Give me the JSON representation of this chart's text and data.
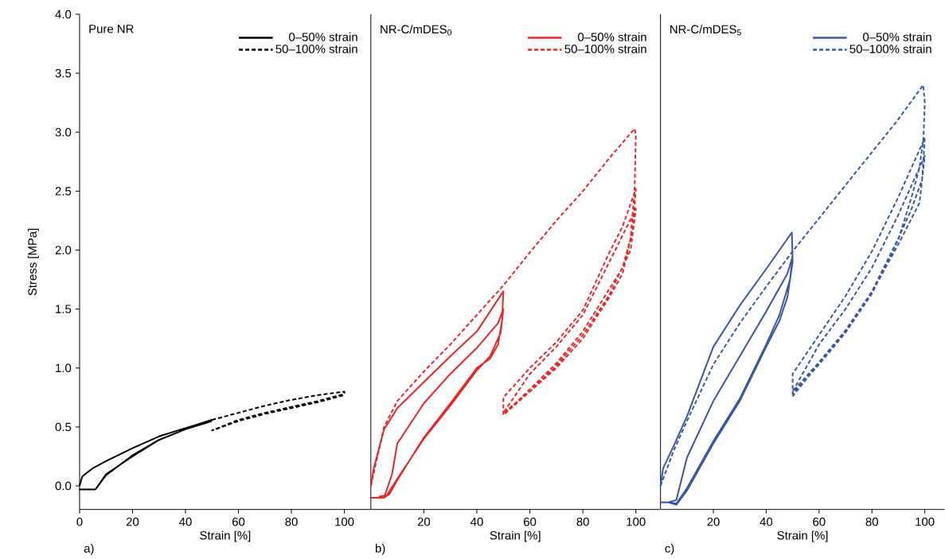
{
  "chart_data": [
    {
      "type": "line",
      "title": "Pure NR",
      "xlabel": "Strain [%]",
      "ylabel": "Stress [MPa]",
      "annotations": [
        "a)"
      ],
      "legend": "top right",
      "marker": "none",
      "xlim": [
        0,
        110
      ],
      "ylim": [
        -0.2,
        4.0
      ],
      "xticks": [
        0,
        20,
        40,
        60,
        80,
        100
      ],
      "yticks": [
        {
          "value": 0,
          "label": "0.0"
        },
        {
          "value": 0.5,
          "label": "0.5"
        },
        {
          "value": 1,
          "label": "1.0"
        },
        {
          "value": 1.5,
          "label": "1.5"
        },
        {
          "value": 2,
          "label": "2.0"
        },
        {
          "value": 2.5,
          "label": "2.5"
        },
        {
          "value": 3,
          "label": "3.0"
        },
        {
          "value": 3.5,
          "label": "3.5"
        },
        {
          "value": 4,
          "label": "4.0"
        }
      ],
      "series": [
        {
          "name": "0–50% strain",
          "color": "#000000",
          "line_style": "solid",
          "x": [
            0,
            1,
            5,
            10,
            20,
            30,
            40,
            50,
            40,
            30,
            20,
            10,
            6,
            0,
            6,
            10,
            20,
            30,
            40,
            50
          ],
          "values": [
            0,
            0.08,
            0.15,
            0.21,
            0.32,
            0.42,
            0.49,
            0.56,
            0.48,
            0.39,
            0.25,
            0.1,
            -0.03,
            -0.03,
            -0.03,
            0.09,
            0.26,
            0.39,
            0.48,
            0.55
          ]
        },
        {
          "name": "50–100% strain",
          "color": "#000000",
          "line_style": "dashed",
          "x": [
            50,
            60,
            70,
            80,
            90,
            100,
            100,
            90,
            80,
            70,
            60,
            50,
            60,
            70,
            80,
            90,
            100
          ],
          "values": [
            0.56,
            0.62,
            0.68,
            0.73,
            0.77,
            0.8,
            0.78,
            0.72,
            0.67,
            0.62,
            0.56,
            0.47,
            0.55,
            0.61,
            0.66,
            0.71,
            0.77
          ]
        }
      ]
    },
    {
      "type": "line",
      "title": "NR-C/mDES$_{0}$",
      "xlabel": "Strain [%]",
      "annotations": [
        "b)"
      ],
      "legend": "top right",
      "marker": "none",
      "tick_labels": "x",
      "xlim": [
        0,
        109
      ],
      "ylim": [
        -0.2,
        4.0
      ],
      "xticks": [
        20,
        40,
        60,
        80,
        100
      ],
      "series": [
        {
          "name": "0–50% strain",
          "color": "#e8272a",
          "line_style": "solid",
          "x": [
            0,
            1,
            5,
            10,
            20,
            30,
            40,
            50,
            49.5,
            48,
            45,
            40,
            30,
            20,
            10,
            7,
            5,
            0,
            5,
            8,
            10,
            20,
            30,
            40,
            48,
            50,
            49,
            45,
            40,
            30,
            20,
            10,
            6,
            3
          ],
          "values": [
            0,
            0.14,
            0.48,
            0.66,
            0.88,
            1.1,
            1.31,
            1.65,
            1.4,
            1.2,
            1.08,
            1.0,
            0.7,
            0.41,
            0.05,
            -0.07,
            -0.1,
            -0.1,
            -0.1,
            0.1,
            0.36,
            0.7,
            0.95,
            1.17,
            1.38,
            1.5,
            1.3,
            1.1,
            0.98,
            0.68,
            0.4,
            0.06,
            -0.08,
            -0.09
          ]
        },
        {
          "name": "50–100% strain",
          "color": "#e8272a",
          "line_style": "dashed",
          "x": [
            0,
            5,
            10,
            20,
            30,
            40,
            50,
            60,
            70,
            80,
            90,
            99.5,
            100,
            99.5,
            98,
            95,
            90,
            80,
            70,
            60,
            50,
            50,
            60,
            70,
            80,
            90,
            95,
            100,
            99,
            95,
            90,
            80,
            70,
            60,
            50,
            60,
            70,
            80,
            90,
            100,
            98,
            90,
            80,
            70,
            60,
            50
          ],
          "values": [
            0,
            0.5,
            0.72,
            0.97,
            1.2,
            1.45,
            1.7,
            1.98,
            2.25,
            2.5,
            2.78,
            3.03,
            2.98,
            2.5,
            2.1,
            1.85,
            1.67,
            1.31,
            1.04,
            0.82,
            0.6,
            0.75,
            1.0,
            1.22,
            1.49,
            1.98,
            2.2,
            2.52,
            2.2,
            1.8,
            1.6,
            1.25,
            1.0,
            0.8,
            0.62,
            0.95,
            1.18,
            1.45,
            1.9,
            2.35,
            2.0,
            1.62,
            1.28,
            1.02,
            0.8,
            0.6
          ]
        }
      ]
    },
    {
      "type": "line",
      "title": "NR-C/mDES$_{5}$",
      "xlabel": "Strain [%]",
      "annotations": [
        "c)"
      ],
      "legend": "top right",
      "marker": "none",
      "tick_labels": "x",
      "xlim": [
        0,
        107.5
      ],
      "ylim": [
        -0.2,
        4.0
      ],
      "xticks": [
        20,
        40,
        60,
        80,
        100
      ],
      "series": [
        {
          "name": "0–50% strain",
          "color": "#3a56a5",
          "line_style": "solid",
          "x": [
            0,
            1,
            5,
            10,
            20,
            30,
            40,
            49.7,
            50,
            48,
            45,
            40,
            30,
            20,
            10,
            6,
            3,
            0,
            3,
            6,
            10,
            20,
            30,
            40,
            48,
            50,
            49,
            45,
            40,
            30,
            20,
            10,
            6,
            3
          ],
          "values": [
            0,
            0.15,
            0.34,
            0.59,
            1.18,
            1.53,
            1.84,
            2.15,
            1.9,
            1.6,
            1.4,
            1.18,
            0.72,
            0.36,
            -0.04,
            -0.16,
            -0.14,
            -0.14,
            -0.14,
            -0.12,
            0.24,
            0.72,
            1.1,
            1.48,
            1.8,
            1.95,
            1.75,
            1.45,
            1.2,
            0.74,
            0.38,
            -0.02,
            -0.15,
            -0.14
          ]
        },
        {
          "name": "50–100% strain",
          "color": "#3a56a5",
          "line_style": "dashed",
          "x": [
            0,
            5,
            10,
            20,
            30,
            40,
            50,
            60,
            70,
            80,
            90,
            99.4,
            100,
            99.5,
            98,
            95,
            90,
            80,
            70,
            60,
            50,
            50,
            60,
            70,
            80,
            90,
            95,
            100,
            99,
            95,
            90,
            80,
            70,
            60,
            50,
            60,
            70,
            80,
            90,
            100,
            98,
            90,
            80,
            70,
            60,
            50
          ],
          "values": [
            0,
            0.3,
            0.55,
            1.03,
            1.38,
            1.69,
            1.99,
            2.27,
            2.55,
            2.83,
            3.11,
            3.4,
            3.25,
            2.95,
            2.7,
            2.45,
            2.09,
            1.63,
            1.3,
            1.03,
            0.78,
            0.95,
            1.28,
            1.61,
            1.99,
            2.45,
            2.7,
            2.95,
            2.6,
            2.35,
            2.1,
            1.65,
            1.32,
            1.05,
            0.8,
            1.2,
            1.5,
            1.85,
            2.3,
            2.8,
            2.4,
            2.05,
            1.64,
            1.3,
            1.04,
            0.76
          ]
        }
      ]
    }
  ]
}
